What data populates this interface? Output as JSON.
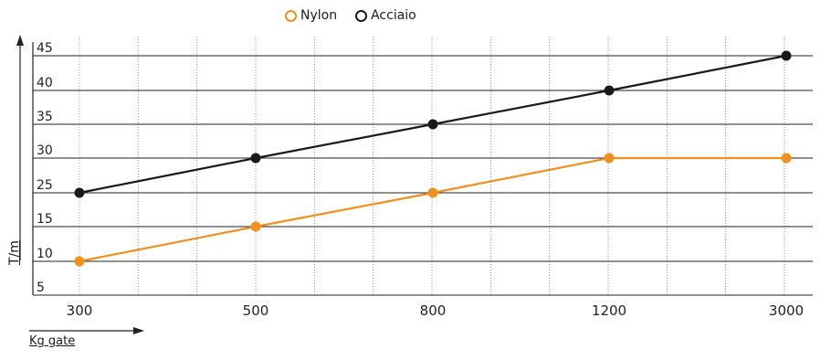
{
  "chart_data": {
    "type": "line",
    "categories": [
      "300",
      "500",
      "800",
      "1200",
      "3000"
    ],
    "x_values": [
      300,
      500,
      800,
      1200,
      3000
    ],
    "y_tick_labels": [
      "5",
      "10",
      "15",
      "25",
      "30",
      "35",
      "40",
      "45"
    ],
    "series": [
      {
        "name": "Nylon",
        "color": "#f0901e",
        "values": [
          10,
          15,
          25,
          30,
          30
        ]
      },
      {
        "name": "Acciaio",
        "color": "#1a1a1a",
        "values": [
          25,
          30,
          35,
          40,
          45
        ]
      }
    ],
    "xlabel": "Kg gate",
    "ylabel": "T/m",
    "grid": true,
    "legend_position": "top-center"
  }
}
